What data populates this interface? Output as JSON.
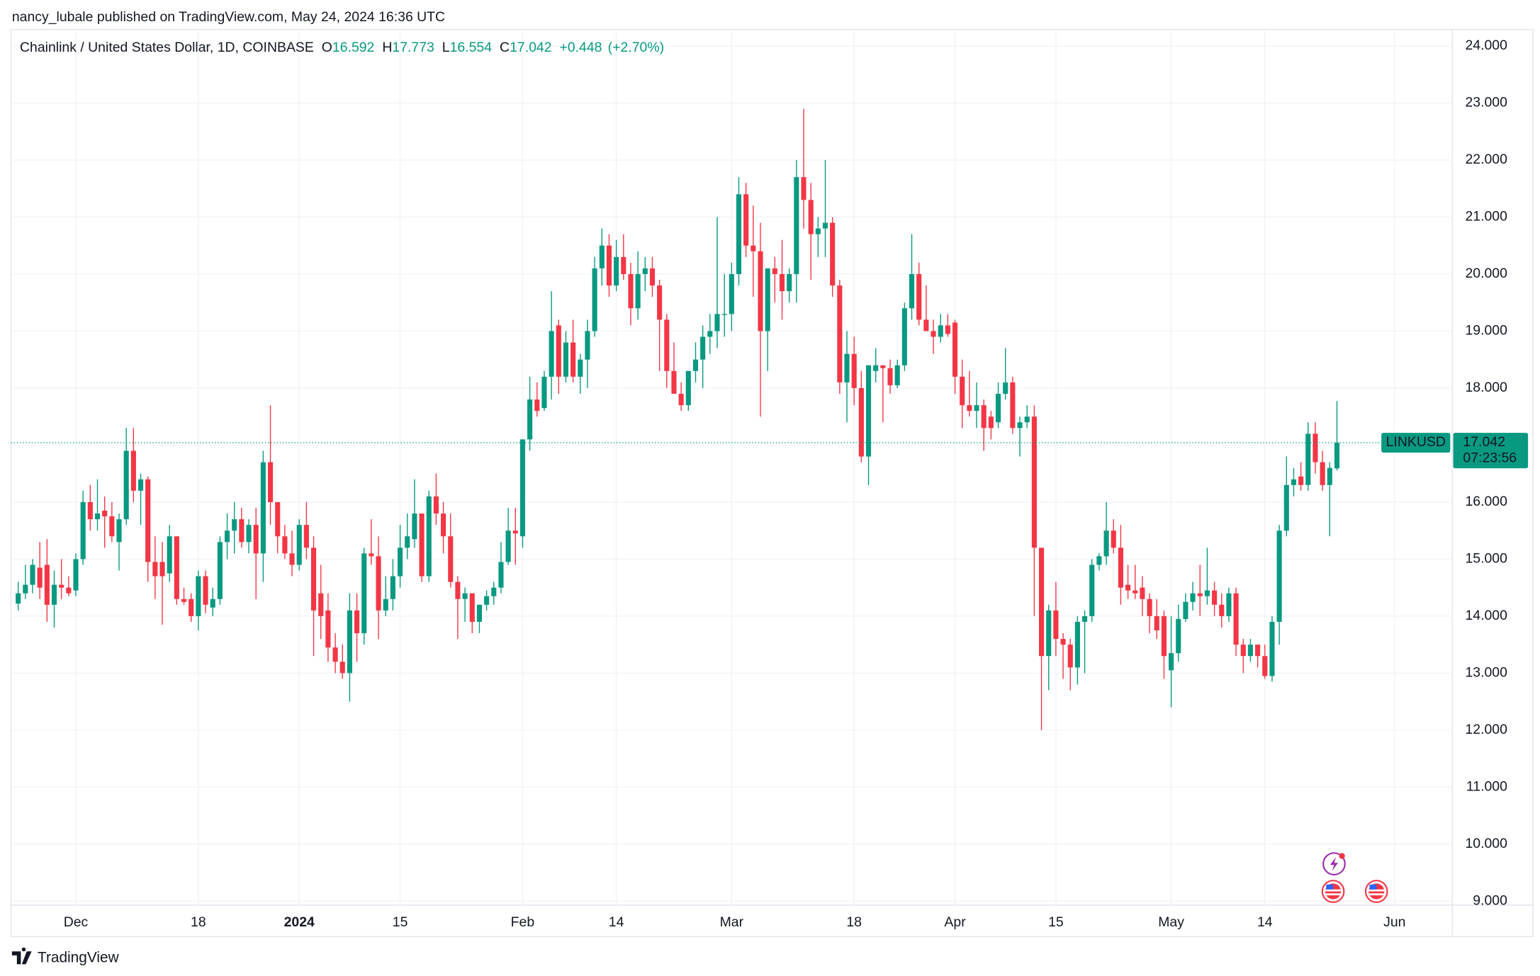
{
  "header": {
    "published": "nancy_lubale published on TradingView.com, May 24, 2024 16:36 UTC"
  },
  "chart_data": {
    "type": "candlestick",
    "title": "Chainlink / United States Dollar, 1D, COINBASE",
    "ohlc_labels": {
      "open": "O",
      "high": "H",
      "low": "L",
      "close": "C"
    },
    "change": "+0.448",
    "change_pct": "(+2.70%)",
    "symbol": "LINKUSD",
    "countdown": "07:23:56",
    "up_color": "#089981",
    "down_color": "#f23645",
    "grid": true,
    "x": [
      "2023-11-23",
      "2023-11-24",
      "2023-11-25",
      "2023-11-26",
      "2023-11-27",
      "2023-11-28",
      "2023-11-29",
      "2023-11-30",
      "2023-12-01",
      "2023-12-02",
      "2023-12-03",
      "2023-12-04",
      "2023-12-05",
      "2023-12-06",
      "2023-12-07",
      "2023-12-08",
      "2023-12-09",
      "2023-12-10",
      "2023-12-11",
      "2023-12-12",
      "2023-12-13",
      "2023-12-14",
      "2023-12-15",
      "2023-12-16",
      "2023-12-17",
      "2023-12-18",
      "2023-12-19",
      "2023-12-20",
      "2023-12-21",
      "2023-12-22",
      "2023-12-23",
      "2023-12-24",
      "2023-12-25",
      "2023-12-26",
      "2023-12-27",
      "2023-12-28",
      "2023-12-29",
      "2023-12-30",
      "2023-12-31",
      "2024-01-01",
      "2024-01-02",
      "2024-01-03",
      "2024-01-04",
      "2024-01-05",
      "2024-01-06",
      "2024-01-07",
      "2024-01-08",
      "2024-01-09",
      "2024-01-10",
      "2024-01-11",
      "2024-01-12",
      "2024-01-13",
      "2024-01-14",
      "2024-01-15",
      "2024-01-16",
      "2024-01-17",
      "2024-01-18",
      "2024-01-19",
      "2024-01-20",
      "2024-01-21",
      "2024-01-22",
      "2024-01-23",
      "2024-01-24",
      "2024-01-25",
      "2024-01-26",
      "2024-01-27",
      "2024-01-28",
      "2024-01-29",
      "2024-01-30",
      "2024-01-31",
      "2024-02-01",
      "2024-02-02",
      "2024-02-03",
      "2024-02-04",
      "2024-02-05",
      "2024-02-06",
      "2024-02-07",
      "2024-02-08",
      "2024-02-09",
      "2024-02-10",
      "2024-02-11",
      "2024-02-12",
      "2024-02-13",
      "2024-02-14",
      "2024-02-15",
      "2024-02-16",
      "2024-02-17",
      "2024-02-18",
      "2024-02-19",
      "2024-02-20",
      "2024-02-21",
      "2024-02-22",
      "2024-02-23",
      "2024-02-24",
      "2024-02-25",
      "2024-02-26",
      "2024-02-27",
      "2024-02-28",
      "2024-02-29",
      "2024-03-01",
      "2024-03-02",
      "2024-03-03",
      "2024-03-04",
      "2024-03-05",
      "2024-03-06",
      "2024-03-07",
      "2024-03-08",
      "2024-03-09",
      "2024-03-10",
      "2024-03-11",
      "2024-03-12",
      "2024-03-13",
      "2024-03-14",
      "2024-03-15",
      "2024-03-16",
      "2024-03-17",
      "2024-03-18",
      "2024-03-19",
      "2024-03-20",
      "2024-03-21",
      "2024-03-22",
      "2024-03-23",
      "2024-03-24",
      "2024-03-25",
      "2024-03-26",
      "2024-03-27",
      "2024-03-28",
      "2024-03-29",
      "2024-03-30",
      "2024-03-31",
      "2024-04-01",
      "2024-04-02",
      "2024-04-03",
      "2024-04-04",
      "2024-04-05",
      "2024-04-06",
      "2024-04-07",
      "2024-04-08",
      "2024-04-09",
      "2024-04-10",
      "2024-04-11",
      "2024-04-12",
      "2024-04-13",
      "2024-04-14",
      "2024-04-15",
      "2024-04-16",
      "2024-04-17",
      "2024-04-18",
      "2024-04-19",
      "2024-04-20",
      "2024-04-21",
      "2024-04-22",
      "2024-04-23",
      "2024-04-24",
      "2024-04-25",
      "2024-04-26",
      "2024-04-27",
      "2024-04-28",
      "2024-04-29",
      "2024-04-30",
      "2024-05-01",
      "2024-05-02",
      "2024-05-03",
      "2024-05-04",
      "2024-05-05",
      "2024-05-06",
      "2024-05-07",
      "2024-05-08",
      "2024-05-09",
      "2024-05-10",
      "2024-05-11",
      "2024-05-12",
      "2024-05-13",
      "2024-05-14",
      "2024-05-15",
      "2024-05-16",
      "2024-05-17",
      "2024-05-18",
      "2024-05-19",
      "2024-05-20",
      "2024-05-21",
      "2024-05-22",
      "2024-05-23",
      "2024-05-24"
    ],
    "open": [
      14.22,
      14.4,
      14.55,
      14.85,
      14.9,
      14.2,
      14.55,
      14.5,
      14.45,
      15.0,
      16.0,
      15.7,
      15.85,
      15.75,
      15.3,
      15.7,
      16.9,
      16.2,
      16.4,
      14.95,
      14.95,
      14.75,
      15.4,
      14.3,
      14.3,
      14.0,
      14.7,
      14.15,
      14.3,
      15.3,
      15.5,
      15.7,
      15.3,
      15.6,
      15.1,
      16.7,
      16.0,
      15.4,
      15.1,
      14.9,
      15.6,
      15.2,
      14.4,
      14.1,
      13.45,
      13.2,
      13.0,
      14.1,
      13.7,
      15.1,
      15.05,
      14.1,
      14.3,
      14.7,
      15.2,
      15.35,
      15.8,
      14.7,
      16.1,
      15.8,
      15.4,
      14.6,
      14.3,
      14.4,
      13.9,
      14.2,
      14.35,
      14.5,
      14.95,
      15.5,
      15.4,
      17.1,
      17.8,
      17.65,
      18.2,
      19.1,
      18.2,
      18.8,
      18.2,
      18.5,
      19.0,
      20.1,
      20.5,
      19.8,
      20.3,
      20.0,
      19.4,
      20.0,
      20.1,
      19.8,
      19.2,
      18.3,
      17.9,
      17.7,
      18.3,
      18.5,
      18.9,
      19.0,
      19.3,
      19.3,
      20.0,
      21.4,
      20.5,
      20.4,
      19.0,
      20.1,
      20.0,
      19.7,
      20.0,
      21.7,
      21.3,
      20.7,
      20.8,
      20.9,
      19.8,
      18.1,
      18.6,
      18.0,
      16.8,
      18.3,
      18.4,
      18.35,
      18.05,
      18.4,
      19.4,
      20.0,
      19.2,
      19.0,
      18.9,
      19.1,
      19.15,
      18.2,
      17.7,
      17.6,
      17.7,
      17.5,
      17.4,
      17.9,
      18.1,
      17.3,
      17.4,
      17.5,
      15.2,
      13.3,
      14.1,
      13.6,
      13.5,
      13.1,
      13.9,
      14.0,
      14.9,
      15.05,
      15.5,
      15.2,
      14.55,
      14.45,
      14.5,
      14.3,
      14.0,
      14.0,
      13.05,
      13.35,
      13.95,
      14.25,
      14.4,
      14.35,
      14.45,
      14.2,
      14.0,
      14.4,
      13.5,
      13.3,
      13.5,
      13.3,
      12.95,
      13.9,
      15.5,
      16.3,
      16.45,
      16.3,
      17.2,
      16.7,
      16.3,
      16.592
    ],
    "high": [
      14.6,
      14.9,
      15.0,
      15.3,
      15.35,
      14.8,
      15.0,
      14.7,
      15.1,
      16.2,
      16.3,
      16.4,
      16.1,
      16.0,
      15.8,
      17.3,
      17.3,
      16.5,
      16.45,
      15.4,
      15.3,
      15.6,
      15.4,
      14.5,
      14.4,
      14.8,
      14.8,
      14.5,
      15.4,
      15.8,
      16.0,
      15.9,
      15.7,
      15.9,
      16.9,
      17.7,
      16.0,
      15.6,
      15.5,
      15.7,
      16.0,
      15.4,
      14.9,
      14.4,
      13.7,
      13.5,
      14.4,
      14.4,
      15.2,
      15.7,
      15.4,
      14.7,
      15.0,
      15.6,
      15.8,
      16.4,
      15.8,
      16.2,
      16.5,
      16.0,
      15.8,
      14.7,
      14.5,
      14.4,
      14.2,
      14.45,
      14.6,
      15.3,
      15.9,
      15.9,
      17.1,
      18.2,
      18.1,
      18.3,
      19.7,
      19.2,
      19.0,
      19.2,
      18.6,
      19.2,
      20.3,
      20.8,
      20.7,
      20.6,
      20.7,
      20.2,
      20.4,
      20.3,
      20.3,
      19.9,
      19.3,
      18.8,
      18.1,
      18.3,
      18.8,
      19.1,
      19.3,
      21.0,
      20.0,
      20.2,
      21.7,
      21.6,
      21.2,
      20.9,
      20.1,
      20.3,
      20.6,
      20.1,
      22.0,
      22.9,
      21.6,
      21.0,
      22.0,
      21.0,
      19.9,
      19.0,
      18.9,
      18.3,
      18.4,
      18.7,
      18.4,
      18.5,
      18.5,
      19.5,
      20.7,
      20.2,
      19.8,
      19.2,
      19.3,
      19.3,
      19.2,
      18.5,
      18.3,
      18.1,
      17.8,
      17.6,
      18.1,
      18.7,
      18.2,
      17.5,
      17.7,
      17.7,
      15.2,
      14.2,
      14.6,
      13.7,
      13.6,
      14.0,
      14.1,
      15.0,
      15.1,
      16.0,
      15.7,
      15.6,
      14.9,
      14.9,
      14.7,
      14.4,
      14.3,
      14.1,
      14.0,
      14.2,
      14.4,
      14.6,
      14.9,
      15.2,
      14.6,
      14.4,
      14.5,
      14.5,
      13.6,
      13.6,
      13.5,
      13.5,
      14.0,
      15.6,
      16.8,
      16.6,
      16.7,
      17.4,
      17.4,
      16.9,
      16.7,
      17.773
    ],
    "low": [
      14.1,
      14.3,
      14.4,
      14.3,
      13.9,
      13.8,
      14.3,
      14.35,
      14.35,
      14.9,
      15.5,
      15.5,
      15.2,
      15.3,
      14.8,
      15.6,
      16.0,
      15.6,
      14.6,
      14.3,
      13.85,
      14.6,
      14.2,
      14.2,
      13.9,
      13.75,
      14.05,
      14.0,
      14.2,
      15.0,
      15.1,
      15.2,
      15.1,
      14.3,
      14.6,
      15.6,
      15.1,
      15.0,
      14.7,
      14.8,
      15.0,
      13.3,
      13.6,
      13.2,
      13.0,
      12.9,
      12.5,
      13.2,
      13.5,
      14.9,
      13.6,
      14.0,
      14.1,
      14.5,
      15.0,
      15.2,
      14.6,
      14.6,
      15.6,
      15.1,
      14.5,
      13.6,
      13.9,
      13.7,
      13.7,
      14.1,
      14.2,
      14.4,
      14.9,
      14.9,
      15.2,
      16.9,
      17.5,
      17.6,
      17.8,
      17.9,
      18.1,
      18.1,
      17.9,
      18.0,
      18.9,
      19.8,
      19.6,
      19.7,
      19.9,
      19.1,
      19.2,
      19.7,
      19.6,
      18.3,
      18.0,
      17.9,
      17.6,
      17.6,
      18.1,
      18.0,
      18.6,
      18.7,
      18.9,
      19.0,
      19.8,
      20.3,
      19.6,
      17.5,
      18.3,
      19.5,
      19.2,
      19.5,
      19.5,
      20.8,
      19.9,
      20.3,
      20.3,
      19.6,
      17.9,
      17.4,
      17.7,
      16.7,
      16.3,
      18.1,
      17.4,
      17.9,
      18.0,
      18.3,
      19.2,
      19.1,
      19.0,
      18.6,
      18.8,
      18.9,
      17.9,
      17.3,
      17.5,
      17.3,
      16.9,
      17.1,
      17.3,
      17.8,
      17.2,
      16.8,
      17.3,
      14.0,
      12.0,
      12.7,
      13.3,
      12.9,
      12.7,
      12.8,
      13.0,
      13.9,
      14.8,
      14.9,
      15.1,
      14.2,
      14.3,
      14.3,
      14.0,
      13.7,
      13.6,
      12.9,
      12.4,
      13.2,
      13.9,
      14.1,
      14.0,
      14.2,
      14.0,
      13.8,
      13.9,
      13.3,
      13.0,
      13.2,
      13.1,
      12.9,
      12.85,
      13.5,
      15.4,
      16.1,
      16.2,
      16.2,
      16.5,
      16.2,
      15.4,
      16.554
    ],
    "close": [
      14.4,
      14.55,
      14.9,
      14.5,
      14.2,
      14.55,
      14.5,
      14.4,
      15.0,
      16.0,
      15.7,
      15.8,
      15.75,
      15.4,
      15.7,
      16.9,
      16.2,
      16.4,
      14.95,
      14.7,
      14.7,
      15.4,
      14.3,
      14.25,
      14.0,
      14.7,
      14.2,
      14.3,
      15.3,
      15.5,
      15.7,
      15.3,
      15.6,
      15.1,
      16.7,
      16.0,
      15.4,
      15.1,
      14.9,
      15.6,
      15.2,
      14.1,
      14.0,
      13.45,
      13.2,
      13.0,
      14.1,
      13.7,
      15.1,
      15.05,
      14.1,
      14.3,
      14.7,
      15.2,
      15.4,
      15.8,
      14.7,
      16.1,
      15.8,
      15.4,
      14.6,
      14.3,
      14.4,
      13.9,
      14.2,
      14.35,
      14.5,
      14.95,
      15.5,
      15.45,
      17.1,
      17.8,
      17.6,
      18.2,
      19.0,
      18.2,
      18.8,
      18.2,
      18.5,
      19.0,
      20.1,
      20.5,
      19.8,
      20.3,
      20.0,
      19.4,
      20.0,
      20.1,
      19.8,
      19.2,
      18.3,
      17.9,
      17.7,
      18.3,
      18.5,
      18.9,
      19.0,
      19.3,
      19.3,
      20.0,
      21.4,
      20.5,
      20.4,
      19.0,
      20.1,
      20.0,
      19.7,
      20.0,
      21.7,
      21.3,
      20.7,
      20.8,
      20.9,
      19.8,
      18.1,
      18.6,
      18.0,
      16.8,
      18.4,
      18.4,
      18.35,
      18.05,
      18.4,
      19.4,
      20.0,
      19.2,
      19.0,
      18.9,
      19.1,
      18.95,
      18.2,
      17.7,
      17.6,
      17.7,
      17.3,
      17.3,
      17.9,
      18.1,
      17.3,
      17.4,
      17.5,
      15.2,
      13.3,
      14.1,
      13.6,
      13.5,
      13.1,
      13.9,
      14.0,
      14.9,
      15.05,
      15.5,
      15.2,
      14.5,
      14.45,
      14.4,
      14.3,
      14.0,
      13.75,
      13.3,
      13.35,
      13.95,
      14.25,
      14.4,
      14.35,
      14.45,
      14.2,
      14.0,
      14.4,
      13.5,
      13.3,
      13.5,
      13.3,
      12.95,
      13.9,
      15.5,
      16.3,
      16.4,
      16.3,
      17.2,
      16.7,
      16.3,
      16.6,
      17.042
    ],
    "xlim": [
      "2023-11-22",
      "2024-06-09"
    ],
    "xticks": [
      {
        "value": "2023-12-01",
        "label": "Dec"
      },
      {
        "value": "2023-12-18",
        "label": "18"
      },
      {
        "value": "2024-01-01",
        "label": "2024"
      },
      {
        "value": "2024-01-15",
        "label": "15"
      },
      {
        "value": "2024-02-01",
        "label": "Feb"
      },
      {
        "value": "2024-02-14",
        "label": "14"
      },
      {
        "value": "2024-03-01",
        "label": "Mar"
      },
      {
        "value": "2024-03-18",
        "label": "18"
      },
      {
        "value": "2024-04-01",
        "label": "Apr"
      },
      {
        "value": "2024-04-15",
        "label": "15"
      },
      {
        "value": "2024-05-01",
        "label": "May"
      },
      {
        "value": "2024-05-14",
        "label": "14"
      },
      {
        "value": "2024-06-01",
        "label": "Jun"
      }
    ],
    "ylim": [
      8.93,
      24.29
    ],
    "yticks": [
      {
        "value": 9,
        "label": "9.000"
      },
      {
        "value": 10,
        "label": "10.000"
      },
      {
        "value": 11,
        "label": "11.000"
      },
      {
        "value": 12,
        "label": "12.000"
      },
      {
        "value": 13,
        "label": "13.000"
      },
      {
        "value": 14,
        "label": "14.000"
      },
      {
        "value": 15,
        "label": "15.000"
      },
      {
        "value": 16,
        "label": "16.000"
      },
      {
        "value": 17,
        "label": "17.000"
      },
      {
        "value": 18,
        "label": "18.000"
      },
      {
        "value": 19,
        "label": "19.000"
      },
      {
        "value": 20,
        "label": "20.000"
      },
      {
        "value": 21,
        "label": "21.000"
      },
      {
        "value": 22,
        "label": "22.000"
      },
      {
        "value": 23,
        "label": "23.000"
      },
      {
        "value": 24,
        "label": "24.000"
      }
    ]
  },
  "footer": {
    "brand": "TradingView"
  }
}
